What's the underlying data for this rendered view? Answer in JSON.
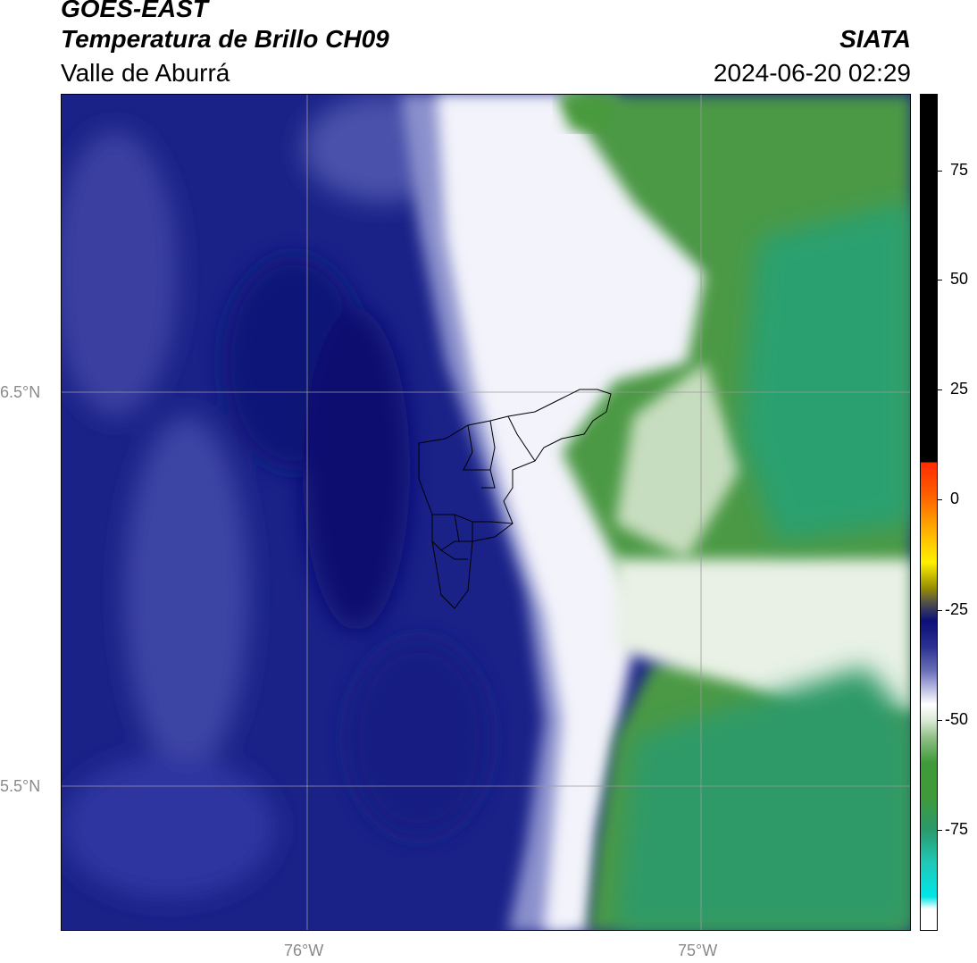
{
  "header": {
    "satellite": "GOES-EAST",
    "product": "Temperatura de Brillo CH09",
    "organization": "SIATA",
    "region": "Valle de Aburrá",
    "datetime": "2024-06-20 02:29"
  },
  "axes": {
    "lat_labels": [
      "6.5°N",
      "5.5°N"
    ],
    "lon_labels": [
      "76°W",
      "75°W"
    ]
  },
  "colorbar": {
    "ticks": [
      "75",
      "50",
      "25",
      "0",
      "-25",
      "-50",
      "-75"
    ],
    "colors": {
      "black": "#000000",
      "red": "#ff2a00",
      "orange": "#ff8c00",
      "yellow": "#fff000",
      "navy": "#0b0f78",
      "lavender": "#9a9ad0",
      "white": "#ffffff",
      "green": "#3f9a3a",
      "teal": "#1fc9b8",
      "cyan": "#00e6e6"
    }
  },
  "map": {
    "colors": {
      "cold_navy": "#0e1478",
      "blue_mid": "#2a3195",
      "blue_light": "#3b42a0",
      "lavender": "#7f86c4",
      "white": "#ffffff",
      "green_light": "#b9d4b1",
      "green_mid": "#5e9e55",
      "green_dark": "#3f8f38",
      "teal_green": "#2a9a6a"
    }
  }
}
